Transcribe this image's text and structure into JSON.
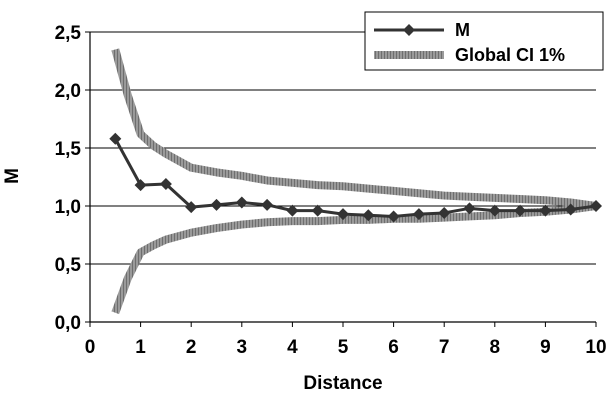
{
  "chart_data": {
    "type": "line",
    "title": "",
    "xlabel": "Distance",
    "ylabel": "M",
    "xlim": [
      0,
      10
    ],
    "ylim": [
      0,
      2.5
    ],
    "x_ticks": [
      "0",
      "1",
      "2",
      "3",
      "4",
      "5",
      "6",
      "7",
      "8",
      "9",
      "10"
    ],
    "y_ticks": [
      "0,0",
      "0,5",
      "1,0",
      "1,5",
      "2,0",
      "2,5"
    ],
    "grid": "horizontal",
    "legend_position": "top-right",
    "series": [
      {
        "name": "M",
        "color": "#333333",
        "marker": "diamond",
        "x": [
          0.5,
          1,
          1.5,
          2,
          2.5,
          3,
          3.5,
          4,
          4.5,
          5,
          5.5,
          6,
          6.5,
          7,
          7.5,
          8,
          8.5,
          9,
          9.5,
          10
        ],
        "y": [
          1.58,
          1.18,
          1.19,
          0.99,
          1.01,
          1.03,
          1.01,
          0.96,
          0.96,
          0.93,
          0.92,
          0.91,
          0.93,
          0.94,
          0.98,
          0.96,
          0.96,
          0.96,
          0.97,
          1.0
        ]
      },
      {
        "name": "Global CI 1%",
        "color": "#8c8c8c",
        "style": "thick-hatched",
        "bands": [
          {
            "x": [
              0.5,
              0.75,
              1,
              1.25,
              1.5,
              2,
              2.5,
              3,
              3.5,
              4,
              4.5,
              5,
              5.5,
              6,
              6.5,
              7,
              7.5,
              8,
              8.5,
              9,
              9.5,
              10
            ],
            "y": [
              2.35,
              1.95,
              1.62,
              1.52,
              1.45,
              1.33,
              1.29,
              1.26,
              1.22,
              1.2,
              1.18,
              1.17,
              1.15,
              1.13,
              1.11,
              1.09,
              1.08,
              1.07,
              1.06,
              1.05,
              1.03,
              1.0
            ]
          },
          {
            "x": [
              0.5,
              0.75,
              1,
              1.25,
              1.5,
              2,
              2.5,
              3,
              3.5,
              4,
              4.5,
              5,
              5.5,
              6,
              6.5,
              7,
              7.5,
              8,
              8.5,
              9,
              9.5,
              10
            ],
            "y": [
              0.08,
              0.38,
              0.6,
              0.66,
              0.71,
              0.77,
              0.81,
              0.84,
              0.86,
              0.87,
              0.87,
              0.88,
              0.88,
              0.89,
              0.89,
              0.9,
              0.91,
              0.92,
              0.94,
              0.95,
              0.97,
              1.0
            ]
          }
        ]
      }
    ]
  }
}
